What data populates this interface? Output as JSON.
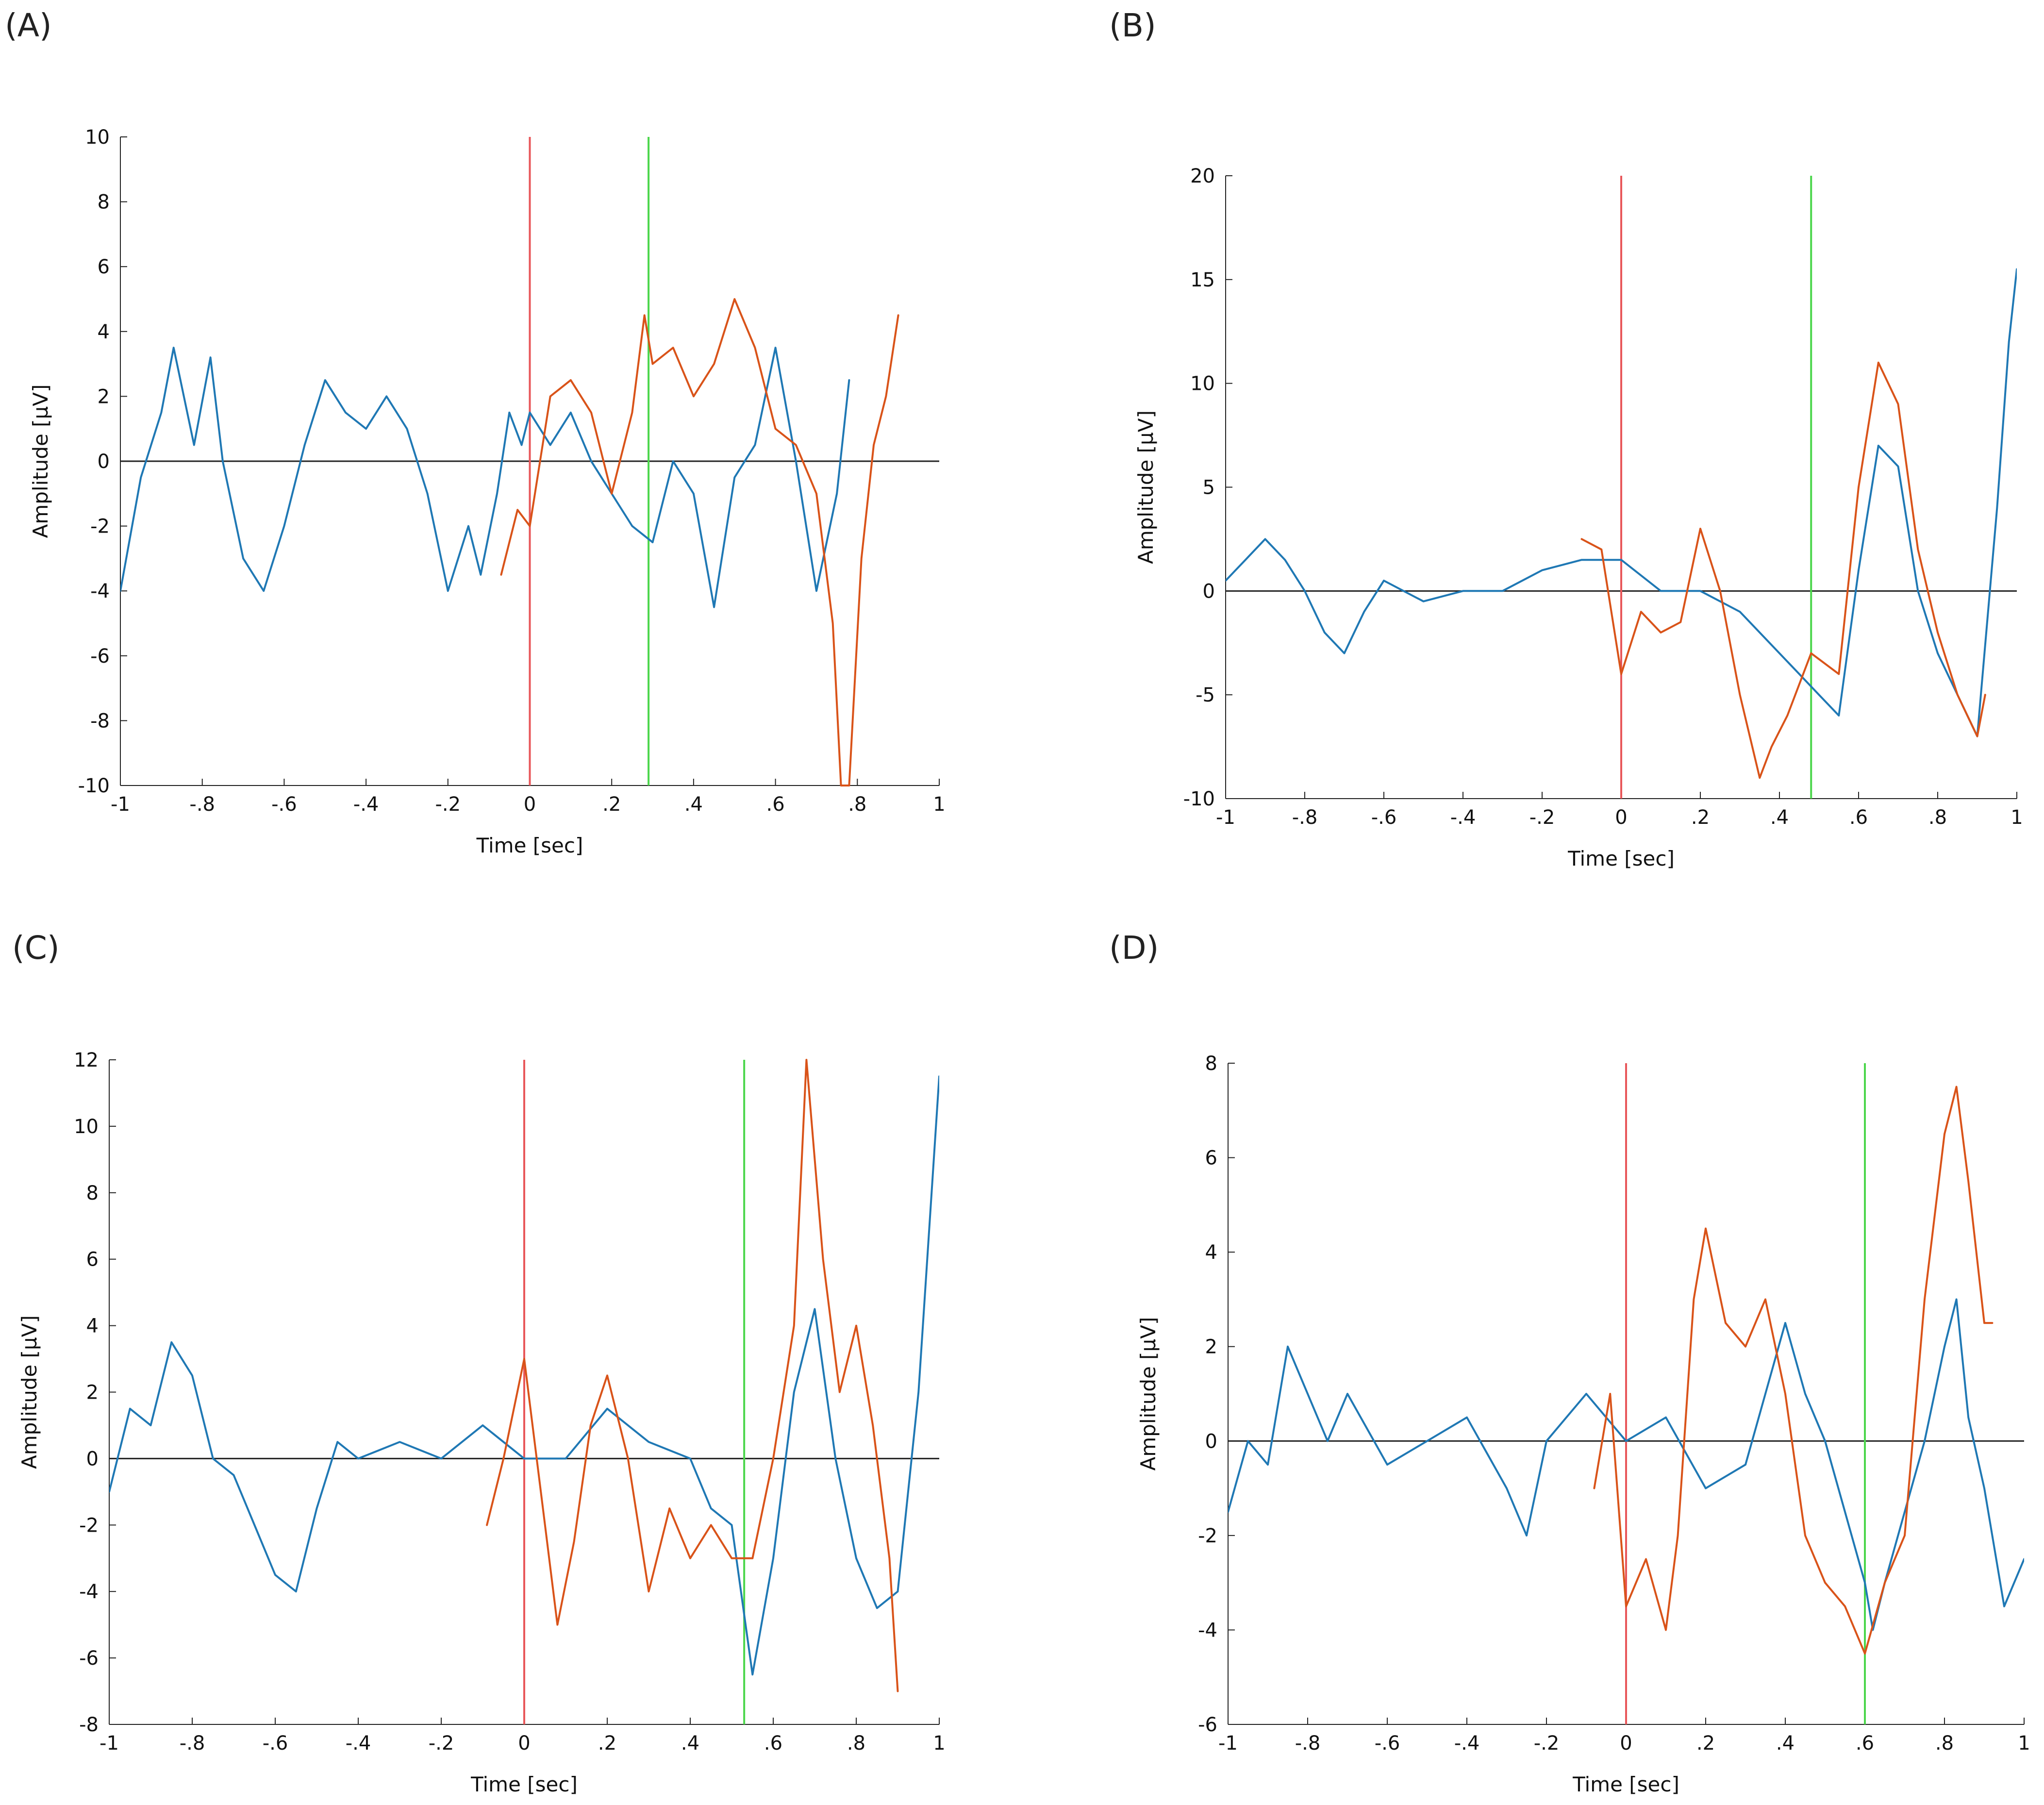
{
  "chart_data": [
    {
      "panel_label": "(A)",
      "type": "line",
      "xlabel": "Time [sec]",
      "ylabel": "Amplitude [μV]",
      "xlim": [
        -1,
        1
      ],
      "ylim": [
        -10,
        10
      ],
      "xticks": [
        -1,
        -0.8,
        -0.6,
        -0.4,
        -0.2,
        0,
        0.2,
        0.4,
        0.6,
        0.8,
        1
      ],
      "yticks": [
        -10,
        -8,
        -6,
        -4,
        -2,
        0,
        2,
        4,
        6,
        8,
        10
      ],
      "markers": [
        {
          "name": "onset",
          "x": 0,
          "color": "#e8575a"
        },
        {
          "name": "peak",
          "x": 0.29,
          "color": "#4cd64c"
        }
      ],
      "series": [
        {
          "name": "blue",
          "color": "#1f78b4",
          "x": [
            -1,
            -0.95,
            -0.9,
            -0.87,
            -0.82,
            -0.78,
            -0.75,
            -0.7,
            -0.65,
            -0.6,
            -0.55,
            -0.5,
            -0.45,
            -0.4,
            -0.35,
            -0.3,
            -0.25,
            -0.2,
            -0.15,
            -0.12,
            -0.08,
            -0.05,
            -0.02,
            0,
            0.05,
            0.1,
            0.15,
            0.2,
            0.25,
            0.3,
            0.35,
            0.4,
            0.45,
            0.5,
            0.55,
            0.6,
            0.65,
            0.7,
            0.75,
            0.78
          ],
          "values": [
            -4,
            -0.5,
            1.5,
            3.5,
            0.5,
            3.2,
            0,
            -3,
            -4,
            -2,
            0.5,
            2.5,
            1.5,
            1,
            2,
            1,
            -1,
            -4,
            -2,
            -3.5,
            -1,
            1.5,
            0.5,
            1.5,
            0.5,
            1.5,
            0,
            -1,
            -2,
            -2.5,
            0,
            -1,
            -4.5,
            -0.5,
            0.5,
            3.5,
            0,
            -4,
            -1,
            2.5
          ]
        },
        {
          "name": "orange",
          "color": "#d95319",
          "x": [
            -0.07,
            -0.03,
            0,
            0.05,
            0.1,
            0.15,
            0.2,
            0.25,
            0.28,
            0.3,
            0.35,
            0.4,
            0.45,
            0.5,
            0.55,
            0.6,
            0.65,
            0.7,
            0.74,
            0.76,
            0.78,
            0.81,
            0.84,
            0.87,
            0.9
          ],
          "values": [
            -3.5,
            -1.5,
            -2,
            2,
            2.5,
            1.5,
            -1,
            1.5,
            4.5,
            3,
            3.5,
            2,
            3,
            5,
            3.5,
            1,
            0.5,
            -1,
            -5,
            -10,
            -10,
            -3,
            0.5,
            2,
            4.5
          ]
        }
      ]
    },
    {
      "panel_label": "(B)",
      "type": "line",
      "xlabel": "Time [sec]",
      "ylabel": "Amplitude [μV]",
      "xlim": [
        -1,
        1
      ],
      "ylim": [
        -10,
        20
      ],
      "xticks": [
        -1,
        -0.8,
        -0.6,
        -0.4,
        -0.2,
        0,
        0.2,
        0.4,
        0.6,
        0.8,
        1
      ],
      "yticks": [
        -10,
        -5,
        0,
        5,
        10,
        15,
        20
      ],
      "markers": [
        {
          "name": "onset",
          "x": 0,
          "color": "#e8575a"
        },
        {
          "name": "peak",
          "x": 0.48,
          "color": "#4cd64c"
        }
      ],
      "series": [
        {
          "name": "blue",
          "color": "#1f78b4",
          "x": [
            -1,
            -0.95,
            -0.9,
            -0.85,
            -0.8,
            -0.75,
            -0.7,
            -0.65,
            -0.6,
            -0.5,
            -0.4,
            -0.3,
            -0.2,
            -0.1,
            0,
            0.1,
            0.2,
            0.3,
            0.4,
            0.45,
            0.5,
            0.55,
            0.6,
            0.65,
            0.7,
            0.75,
            0.8,
            0.85,
            0.9,
            0.95,
            0.98,
            1
          ],
          "values": [
            0.5,
            1.5,
            2.5,
            1.5,
            0,
            -2,
            -3,
            -1,
            0.5,
            -0.5,
            0,
            0,
            1,
            1.5,
            1.5,
            0,
            0,
            -1,
            -3,
            -4,
            -5,
            -6,
            1,
            7,
            6,
            0,
            -3,
            -5,
            -7,
            4,
            12,
            15.5
          ]
        },
        {
          "name": "orange",
          "color": "#d95319",
          "x": [
            -0.1,
            -0.05,
            0,
            0.05,
            0.1,
            0.15,
            0.2,
            0.25,
            0.3,
            0.35,
            0.38,
            0.42,
            0.48,
            0.55,
            0.6,
            0.65,
            0.7,
            0.75,
            0.8,
            0.85,
            0.9,
            0.92
          ],
          "values": [
            2.5,
            2,
            -4,
            -1,
            -2,
            -1.5,
            3,
            0,
            -5,
            -9,
            -7.5,
            -6,
            -3,
            -4,
            5,
            11,
            9,
            2,
            -2,
            -5,
            -7,
            -5
          ]
        }
      ]
    },
    {
      "panel_label": "(C)",
      "type": "line",
      "xlabel": "Time [sec]",
      "ylabel": "Amplitude [μV]",
      "xlim": [
        -1,
        1
      ],
      "ylim": [
        -8,
        12
      ],
      "xticks": [
        -1,
        -0.8,
        -0.6,
        -0.4,
        -0.2,
        0,
        0.2,
        0.4,
        0.6,
        0.8,
        1
      ],
      "yticks": [
        -8,
        -6,
        -4,
        -2,
        0,
        2,
        4,
        6,
        8,
        10,
        12
      ],
      "markers": [
        {
          "name": "onset",
          "x": 0,
          "color": "#e8575a"
        },
        {
          "name": "peak",
          "x": 0.53,
          "color": "#4cd64c"
        }
      ],
      "series": [
        {
          "name": "blue",
          "color": "#1f78b4",
          "x": [
            -1,
            -0.95,
            -0.9,
            -0.85,
            -0.8,
            -0.75,
            -0.7,
            -0.65,
            -0.6,
            -0.55,
            -0.5,
            -0.45,
            -0.4,
            -0.3,
            -0.2,
            -0.1,
            0,
            0.1,
            0.2,
            0.3,
            0.4,
            0.45,
            0.5,
            0.55,
            0.6,
            0.65,
            0.7,
            0.75,
            0.8,
            0.85,
            0.9,
            0.95,
            1
          ],
          "values": [
            -1,
            1.5,
            1,
            3.5,
            2.5,
            0,
            -0.5,
            -2,
            -3.5,
            -4,
            -1.5,
            0.5,
            0,
            0.5,
            0,
            1,
            0,
            0,
            1.5,
            0.5,
            0,
            -1.5,
            -2,
            -6.5,
            -3,
            2,
            4.5,
            0,
            -3,
            -4.5,
            -4,
            2,
            11.5
          ]
        },
        {
          "name": "orange",
          "color": "#d95319",
          "x": [
            -0.09,
            -0.05,
            0,
            0.05,
            0.08,
            0.12,
            0.16,
            0.2,
            0.25,
            0.3,
            0.35,
            0.4,
            0.45,
            0.5,
            0.55,
            0.6,
            0.65,
            0.68,
            0.72,
            0.76,
            0.8,
            0.84,
            0.88,
            0.9
          ],
          "values": [
            -2,
            0,
            3,
            -2,
            -5,
            -2.5,
            1,
            2.5,
            0,
            -4,
            -1.5,
            -3,
            -2,
            -3,
            -3,
            0,
            4,
            12,
            6,
            2,
            4,
            1,
            -3,
            -7
          ]
        }
      ]
    },
    {
      "panel_label": "(D)",
      "type": "line",
      "xlabel": "Time [sec]",
      "ylabel": "Amplitude [μV]",
      "xlim": [
        -1,
        1
      ],
      "ylim": [
        -6,
        8
      ],
      "xticks": [
        -1,
        -0.8,
        -0.6,
        -0.4,
        -0.2,
        0,
        0.2,
        0.4,
        0.6,
        0.8,
        1
      ],
      "yticks": [
        -6,
        -4,
        -2,
        0,
        2,
        4,
        6,
        8
      ],
      "markers": [
        {
          "name": "onset",
          "x": 0,
          "color": "#e8575a"
        },
        {
          "name": "peak",
          "x": 0.6,
          "color": "#4cd64c"
        }
      ],
      "series": [
        {
          "name": "blue",
          "color": "#1f78b4",
          "x": [
            -1,
            -0.95,
            -0.9,
            -0.85,
            -0.8,
            -0.75,
            -0.7,
            -0.6,
            -0.5,
            -0.4,
            -0.3,
            -0.25,
            -0.2,
            -0.1,
            0,
            0.1,
            0.2,
            0.3,
            0.35,
            0.4,
            0.45,
            0.5,
            0.55,
            0.6,
            0.62,
            0.65,
            0.7,
            0.75,
            0.8,
            0.83,
            0.86,
            0.9,
            0.95,
            1
          ],
          "values": [
            -1.5,
            0,
            -0.5,
            2,
            1,
            0,
            1,
            -0.5,
            0,
            0.5,
            -1,
            -2,
            0,
            1,
            0,
            0.5,
            -1,
            -0.5,
            1,
            2.5,
            1,
            0,
            -1.5,
            -3,
            -4,
            -3,
            -1.5,
            0,
            2,
            3,
            0.5,
            -1,
            -3.5,
            -2.5
          ]
        },
        {
          "name": "orange",
          "color": "#d95319",
          "x": [
            -0.08,
            -0.04,
            0,
            0.05,
            0.1,
            0.13,
            0.17,
            0.2,
            0.25,
            0.3,
            0.35,
            0.4,
            0.45,
            0.5,
            0.55,
            0.6,
            0.65,
            0.7,
            0.75,
            0.8,
            0.83,
            0.86,
            0.9,
            0.92
          ],
          "values": [
            -1,
            1,
            -3.5,
            -2.5,
            -4,
            -2,
            3,
            4.5,
            2.5,
            2,
            3,
            1,
            -2,
            -3,
            -3.5,
            -4.5,
            -3,
            -2,
            3,
            6.5,
            7.5,
            5.5,
            2.5,
            2.5
          ]
        }
      ]
    }
  ]
}
